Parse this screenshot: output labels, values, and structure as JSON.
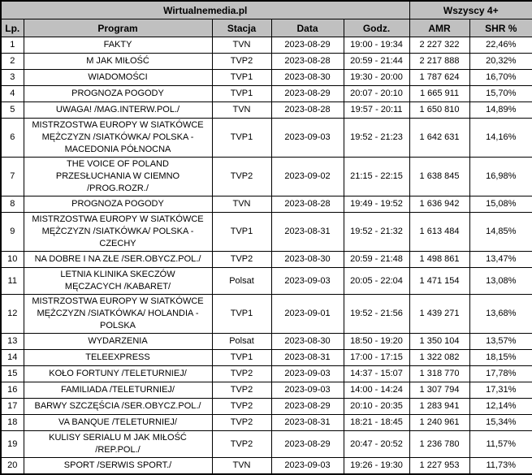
{
  "colors": {
    "header_bg": "#c0c0c0",
    "row_bg": "#ffffff",
    "border": "#000000",
    "text": "#000000"
  },
  "chart_data": {
    "type": "table",
    "title": "Wirtualnemedia.pl",
    "demo_group": "Wszyscy 4+",
    "columns": [
      "Lp.",
      "Program",
      "Stacja",
      "Data",
      "Godz.",
      "AMR",
      "SHR %"
    ],
    "rows": [
      [
        "1",
        "FAKTY",
        "TVN",
        "2023-08-29",
        "19:00 - 19:34",
        "2 227 322",
        "22,46%"
      ],
      [
        "2",
        "M JAK MIŁOŚĆ",
        "TVP2",
        "2023-08-28",
        "20:59 - 21:44",
        "2 217 888",
        "20,32%"
      ],
      [
        "3",
        "WIADOMOŚCI",
        "TVP1",
        "2023-08-30",
        "19:30 - 20:00",
        "1 787 624",
        "16,70%"
      ],
      [
        "4",
        "PROGNOZA POGODY",
        "TVP1",
        "2023-08-29",
        "20:07 - 20:10",
        "1 665 911",
        "15,70%"
      ],
      [
        "5",
        "UWAGA! /MAG.INTERW.POL./",
        "TVN",
        "2023-08-28",
        "19:57 - 20:11",
        "1 650 810",
        "14,89%"
      ],
      [
        "6",
        "MISTRZOSTWA EUROPY W SIATKÓWCE\nMĘŻCZYZN /SIATKÓWKA/ POLSKA -\nMACEDONIA PÓŁNOCNA",
        "TVP1",
        "2023-09-03",
        "19:52 - 21:23",
        "1 642 631",
        "14,16%"
      ],
      [
        "7",
        "THE VOICE OF POLAND\nPRZESŁUCHANIA W CIEMNO\n/PROG.ROZR./",
        "TVP2",
        "2023-09-02",
        "21:15 - 22:15",
        "1 638 845",
        "16,98%"
      ],
      [
        "8",
        "PROGNOZA POGODY",
        "TVN",
        "2023-08-28",
        "19:49 - 19:52",
        "1 636 942",
        "15,08%"
      ],
      [
        "9",
        "MISTRZOSTWA EUROPY W SIATKÓWCE\nMĘŻCZYZN /SIATKÓWKA/ POLSKA -\nCZECHY",
        "TVP1",
        "2023-08-31",
        "19:52 - 21:32",
        "1 613 484",
        "14,85%"
      ],
      [
        "10",
        "NA DOBRE I NA ZŁE /SER.OBYCZ.POL./",
        "TVP2",
        "2023-08-30",
        "20:59 - 21:48",
        "1 498 861",
        "13,47%"
      ],
      [
        "11",
        "LETNIA KLINIKA SKECZÓW\nMĘCZACYCH /KABARET/",
        "Polsat",
        "2023-09-03",
        "20:05 - 22:04",
        "1 471 154",
        "13,08%"
      ],
      [
        "12",
        "MISTRZOSTWA EUROPY W SIATKÓWCE\nMĘŻCZYZN /SIATKÓWKA/ HOLANDIA -\nPOLSKA",
        "TVP1",
        "2023-09-01",
        "19:52 - 21:56",
        "1 439 271",
        "13,68%"
      ],
      [
        "13",
        "WYDARZENIA",
        "Polsat",
        "2023-08-30",
        "18:50 - 19:20",
        "1 350 104",
        "13,57%"
      ],
      [
        "14",
        "TELEEXPRESS",
        "TVP1",
        "2023-08-31",
        "17:00 - 17:15",
        "1 322 082",
        "18,15%"
      ],
      [
        "15",
        "KOŁO FORTUNY /TELETURNIEJ/",
        "TVP2",
        "2023-09-03",
        "14:37 - 15:07",
        "1 318 770",
        "17,78%"
      ],
      [
        "16",
        "FAMILIADA /TELETURNIEJ/",
        "TVP2",
        "2023-09-03",
        "14:00 - 14:24",
        "1 307 794",
        "17,31%"
      ],
      [
        "17",
        "BARWY SZCZĘŚCIA /SER.OBYCZ.POL./",
        "TVP2",
        "2023-08-29",
        "20:10 - 20:35",
        "1 283 941",
        "12,14%"
      ],
      [
        "18",
        "VA BANQUE /TELETURNIEJ/",
        "TVP2",
        "2023-08-31",
        "18:21 - 18:45",
        "1 240 961",
        "15,34%"
      ],
      [
        "19",
        "KULISY SERIALU M JAK MIŁOŚĆ\n/REP.POL./",
        "TVP2",
        "2023-08-29",
        "20:47 - 20:52",
        "1 236 780",
        "11,57%"
      ],
      [
        "20",
        "SPORT /SERWIS SPORT./",
        "TVN",
        "2023-09-03",
        "19:26 - 19:30",
        "1 227 953",
        "11,73%"
      ]
    ]
  }
}
